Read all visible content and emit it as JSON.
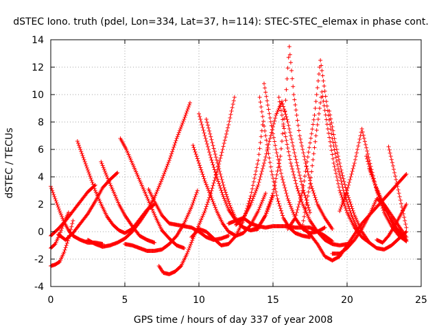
{
  "chart_data": {
    "type": "scatter",
    "title": "dSTEC Iono. truth (pdel, Lon=334, Lat=37, h=114): STEC-STEC_elemax in phase cont.",
    "xlabel": "GPS time / hours of day 337 of year 2008",
    "ylabel": "dSTEC  / TECUs",
    "xlim": [
      0,
      25
    ],
    "ylim": [
      -4,
      14
    ],
    "xticks": [
      0,
      5,
      10,
      15,
      20,
      25
    ],
    "yticks": [
      -4,
      -2,
      0,
      2,
      4,
      6,
      8,
      10,
      12,
      14
    ],
    "grid": true,
    "marker": "plus",
    "color": "#ff0000",
    "series": [
      {
        "x": [
          0.0,
          0.3,
          0.6,
          0.9,
          1.2,
          1.5,
          2.0,
          2.5,
          3.0,
          3.5
        ],
        "y": [
          3.3,
          2.4,
          1.5,
          0.7,
          0.1,
          -0.3,
          -0.6,
          -0.8,
          -0.8,
          -0.9
        ]
      },
      {
        "x": [
          0.0,
          0.3,
          0.6,
          0.9,
          1.2,
          1.5
        ],
        "y": [
          -2.5,
          -2.4,
          -2.2,
          -1.5,
          -0.5,
          0.8
        ]
      },
      {
        "x": [
          0.0,
          0.3,
          0.6,
          0.9,
          1.2
        ],
        "y": [
          -1.2,
          -0.9,
          -0.2,
          0.7,
          1.4
        ]
      },
      {
        "x": [
          0.0,
          0.5,
          1.0,
          1.5,
          2.0,
          2.5,
          3.0
        ],
        "y": [
          -0.3,
          0.2,
          0.8,
          1.5,
          2.2,
          2.9,
          3.4
        ]
      },
      {
        "x": [
          0.5,
          1.0,
          1.5,
          2.0,
          2.5,
          3.0,
          3.5,
          4.0,
          4.5
        ],
        "y": [
          -0.2,
          -0.6,
          -0.1,
          0.6,
          1.3,
          2.2,
          3.2,
          3.8,
          4.3
        ]
      },
      {
        "x": [
          1.8,
          2.2,
          2.6,
          3.0,
          3.4,
          3.8,
          4.2,
          4.6,
          5.0,
          5.5,
          6.0,
          6.5,
          7.0
        ],
        "y": [
          6.6,
          5.4,
          4.2,
          3.0,
          2.0,
          1.1,
          0.5,
          0.1,
          -0.1,
          0.2,
          0.9,
          1.6,
          2.0
        ]
      },
      {
        "x": [
          3.4,
          3.8,
          4.2,
          4.6,
          5.0,
          5.5,
          6.0,
          6.5,
          7.0
        ],
        "y": [
          5.1,
          4.0,
          3.0,
          2.0,
          1.2,
          0.4,
          -0.3,
          -0.6,
          -0.8
        ]
      },
      {
        "x": [
          4.7,
          5.1,
          5.5,
          5.9,
          6.3,
          6.7,
          7.1,
          7.5,
          8.0,
          8.5,
          9.0
        ],
        "y": [
          6.8,
          6.0,
          5.0,
          4.0,
          3.0,
          2.0,
          1.0,
          0.1,
          -0.5,
          -1.0,
          -1.2
        ]
      },
      {
        "x": [
          2.5,
          3.0,
          3.5,
          4.0,
          4.5,
          5.0,
          5.5,
          6.0,
          6.5,
          7.0,
          7.5,
          8.0,
          8.5,
          9.0,
          9.4
        ],
        "y": [
          -0.6,
          -0.9,
          -1.1,
          -1.0,
          -0.8,
          -0.5,
          0.0,
          0.7,
          1.5,
          2.5,
          3.8,
          5.2,
          6.8,
          8.2,
          9.4
        ]
      },
      {
        "x": [
          5.0,
          5.5,
          6.0,
          6.5,
          7.0,
          7.5,
          8.0,
          8.5,
          9.0,
          9.5,
          9.9
        ],
        "y": [
          -0.9,
          -1.0,
          -1.2,
          -1.4,
          -1.4,
          -1.3,
          -0.9,
          -0.3,
          0.6,
          1.8,
          3.0
        ]
      },
      {
        "x": [
          6.6,
          7.0,
          7.5,
          8.0,
          8.5,
          9.0,
          9.5,
          10.0,
          10.5,
          11.0,
          11.5,
          12.0
        ],
        "y": [
          3.1,
          2.2,
          1.2,
          0.6,
          0.5,
          0.4,
          0.3,
          0.0,
          -0.4,
          -0.6,
          -0.5,
          -0.3
        ]
      },
      {
        "x": [
          7.3,
          7.6,
          8.0,
          8.4,
          8.8,
          9.2,
          9.6,
          10.0,
          10.4,
          10.8,
          11.2,
          11.6,
          12.0,
          12.4
        ],
        "y": [
          -2.5,
          -3.0,
          -3.1,
          -2.9,
          -2.5,
          -1.6,
          -0.5,
          0.5,
          1.5,
          2.8,
          4.3,
          6.0,
          7.8,
          9.8
        ]
      },
      {
        "x": [
          9.6,
          10.0,
          10.4,
          10.8,
          11.2,
          11.6,
          12.0,
          12.5,
          13.0,
          13.5,
          14.0,
          14.5
        ],
        "y": [
          6.3,
          5.0,
          3.7,
          2.6,
          1.5,
          0.6,
          0.0,
          -0.3,
          -0.1,
          0.5,
          1.5,
          2.8
        ]
      },
      {
        "x": [
          10.0,
          10.4,
          10.8,
          11.2,
          11.6,
          12.0,
          12.5,
          13.0,
          13.5,
          14.0
        ],
        "y": [
          8.6,
          7.0,
          5.4,
          4.0,
          2.7,
          1.6,
          0.8,
          0.3,
          0.1,
          0.2
        ]
      },
      {
        "x": [
          10.5,
          10.9,
          11.3,
          11.7,
          12.1,
          12.5,
          13.0,
          13.5,
          14.0,
          14.5,
          15.0
        ],
        "y": [
          8.2,
          6.5,
          4.8,
          3.2,
          1.9,
          0.9,
          0.3,
          0.1,
          0.3,
          1.2,
          2.6
        ]
      },
      {
        "x": [
          9.5,
          10.0,
          10.5,
          11.0,
          11.5,
          12.0,
          12.5,
          13.0,
          13.5,
          14.0,
          14.3
        ],
        "y": [
          -0.4,
          0.2,
          0.0,
          -0.5,
          -1.0,
          -0.9,
          -0.3,
          0.8,
          2.6,
          5.2,
          7.8
        ]
      },
      {
        "x": [
          12.0,
          12.5,
          13.0,
          13.5,
          14.0,
          14.5,
          15.0,
          15.5,
          16.0,
          16.5,
          17.0,
          17.5,
          18.0,
          18.5,
          19.0
        ],
        "y": [
          0.6,
          0.8,
          1.0,
          0.6,
          0.4,
          0.3,
          0.4,
          0.4,
          0.4,
          0.3,
          0.3,
          0.3,
          0.0,
          -0.3,
          -0.7
        ]
      },
      {
        "x": [
          12.5,
          13.0,
          13.5,
          14.0,
          14.4,
          14.8,
          15.2,
          15.6,
          16.0,
          16.5,
          17.0,
          17.5
        ],
        "y": [
          0.5,
          1.0,
          2.0,
          3.4,
          5.0,
          6.8,
          8.5,
          9.5,
          8.0,
          5.5,
          3.2,
          1.4
        ]
      },
      {
        "x": [
          14.1,
          14.5,
          14.9,
          15.3,
          15.7,
          16.1,
          16.5,
          17.0,
          17.5
        ],
        "y": [
          9.8,
          7.0,
          4.4,
          2.4,
          1.0,
          0.3,
          -0.1,
          -0.3,
          -0.4
        ]
      },
      {
        "x": [
          14.4,
          14.8,
          15.2,
          15.6,
          16.0,
          16.5,
          17.0,
          17.5,
          18.0,
          18.5
        ],
        "y": [
          10.8,
          8.3,
          6.0,
          4.0,
          2.4,
          1.0,
          0.2,
          -0.1,
          0.0,
          0.3
        ]
      },
      {
        "x": [
          14.0,
          14.5,
          15.0,
          15.5,
          15.8,
          16.1,
          16.4,
          16.8,
          17.2,
          17.6,
          18.0,
          18.5,
          19.0
        ],
        "y": [
          0.3,
          1.2,
          2.8,
          5.5,
          8.8,
          13.5,
          10.0,
          7.0,
          5.0,
          3.3,
          2.0,
          1.0,
          0.2
        ]
      },
      {
        "x": [
          15.4,
          15.8,
          16.2,
          16.6,
          17.0,
          17.5,
          18.0,
          18.5,
          19.0,
          19.5,
          20.0
        ],
        "y": [
          9.8,
          7.2,
          5.0,
          3.3,
          2.0,
          0.8,
          0.0,
          -0.6,
          -0.9,
          -1.0,
          -0.9
        ]
      },
      {
        "x": [
          16.0,
          16.5,
          17.0,
          17.4,
          17.8,
          18.2,
          18.6,
          19.0,
          19.4,
          19.8,
          20.3,
          20.8
        ],
        "y": [
          0.2,
          1.0,
          3.0,
          5.8,
          8.5,
          12.5,
          9.5,
          6.8,
          4.6,
          2.8,
          1.2,
          0.0
        ]
      },
      {
        "x": [
          17.0,
          17.5,
          17.9,
          18.3,
          18.7,
          19.1,
          19.5,
          20.0,
          20.5,
          21.0,
          21.5
        ],
        "y": [
          0.5,
          3.5,
          7.0,
          10.2,
          7.5,
          5.0,
          3.0,
          1.4,
          0.3,
          -0.4,
          -0.8
        ]
      },
      {
        "x": [
          17.0,
          17.5,
          18.0,
          18.5,
          19.0,
          19.5,
          20.0,
          20.5,
          21.0,
          21.5,
          22.0,
          22.5,
          23.0,
          23.5,
          24.0
        ],
        "y": [
          0.3,
          -0.2,
          -0.9,
          -1.8,
          -2.1,
          -1.8,
          -1.0,
          -0.2,
          0.6,
          1.2,
          1.8,
          2.4,
          3.0,
          3.6,
          4.2
        ]
      },
      {
        "x": [
          18.8,
          19.2,
          19.6,
          20.0,
          20.5,
          21.0,
          21.5,
          22.0,
          22.5,
          23.0,
          23.5,
          24.0
        ],
        "y": [
          8.8,
          6.5,
          4.5,
          2.8,
          1.2,
          0.0,
          -0.8,
          -1.2,
          -1.3,
          -1.0,
          -0.5,
          0.0
        ]
      },
      {
        "x": [
          19.0,
          19.5,
          20.0,
          20.5,
          21.0,
          21.5,
          22.0,
          22.5,
          23.0,
          23.5,
          24.0
        ],
        "y": [
          -1.6,
          -1.6,
          -1.2,
          -0.6,
          0.2,
          1.2,
          2.4,
          2.0,
          1.2,
          0.4,
          -0.4
        ]
      },
      {
        "x": [
          19.5,
          20.0,
          20.5,
          21.0,
          21.5,
          22.0,
          22.5,
          23.0,
          23.5,
          24.0
        ],
        "y": [
          1.5,
          3.0,
          5.0,
          7.5,
          5.2,
          3.0,
          1.4,
          0.4,
          -0.3,
          -0.7
        ]
      },
      {
        "x": [
          21.3,
          21.7,
          22.1,
          22.5,
          22.9,
          23.3,
          23.7,
          24.0
        ],
        "y": [
          5.5,
          4.0,
          2.8,
          1.8,
          1.0,
          0.3,
          -0.2,
          -0.6
        ]
      },
      {
        "x": [
          21.5,
          21.9,
          22.3,
          22.7,
          23.1,
          23.5,
          23.8,
          24.0
        ],
        "y": [
          4.6,
          3.4,
          2.4,
          1.4,
          0.6,
          0.0,
          -0.4,
          -0.7
        ]
      },
      {
        "x": [
          22.0,
          22.4,
          22.8,
          23.2,
          23.6,
          24.0
        ],
        "y": [
          -0.6,
          -0.8,
          -0.3,
          0.4,
          1.2,
          2.0
        ]
      },
      {
        "x": [
          22.8,
          23.1,
          23.4,
          23.7,
          24.0
        ],
        "y": [
          6.2,
          4.8,
          3.3,
          1.8,
          0.3
        ]
      }
    ]
  }
}
